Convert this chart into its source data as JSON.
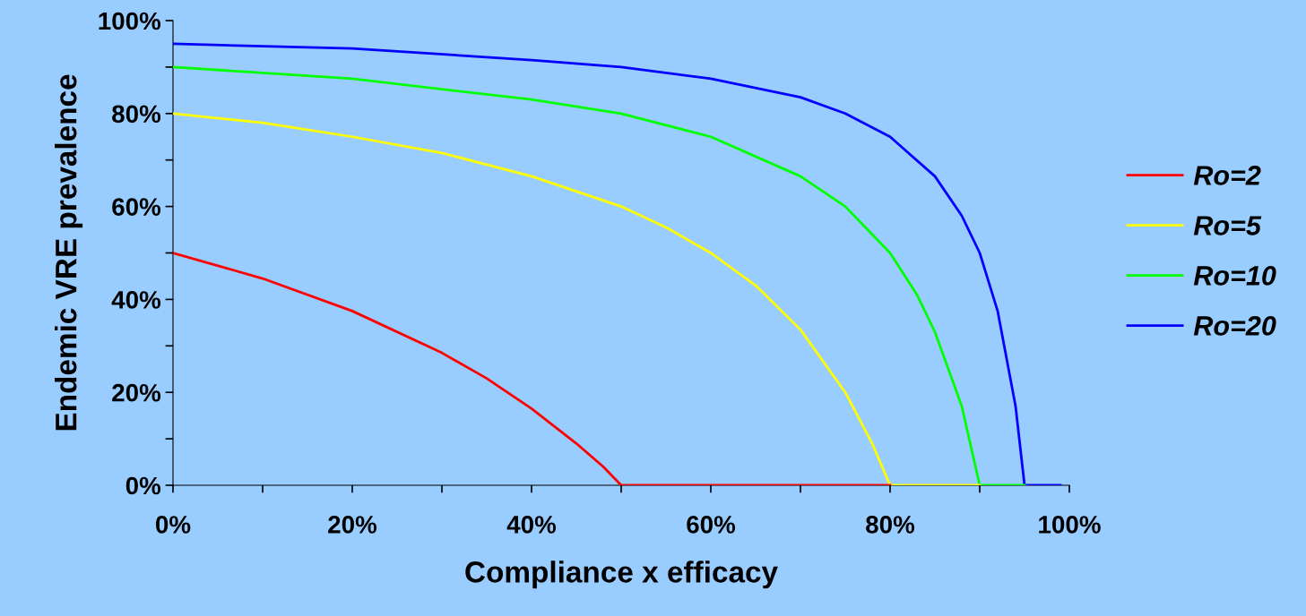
{
  "chart_data": {
    "type": "line",
    "xlabel": "Compliance x efficacy",
    "ylabel": "Endemic VRE prevalence",
    "xlim": [
      0,
      100
    ],
    "ylim": [
      0,
      100
    ],
    "xticks": [
      {
        "value": 0,
        "label": "0%"
      },
      {
        "value": 10,
        "label": null
      },
      {
        "value": 20,
        "label": "20%"
      },
      {
        "value": 30,
        "label": null
      },
      {
        "value": 40,
        "label": "40%"
      },
      {
        "value": 50,
        "label": null
      },
      {
        "value": 60,
        "label": "60%"
      },
      {
        "value": 70,
        "label": null
      },
      {
        "value": 80,
        "label": "80%"
      },
      {
        "value": 90,
        "label": null
      },
      {
        "value": 100,
        "label": "100%"
      }
    ],
    "yticks": [
      {
        "value": 0,
        "label": "0%"
      },
      {
        "value": 10,
        "label": null
      },
      {
        "value": 20,
        "label": "20%"
      },
      {
        "value": 30,
        "label": null
      },
      {
        "value": 40,
        "label": "40%"
      },
      {
        "value": 50,
        "label": null
      },
      {
        "value": 60,
        "label": "60%"
      },
      {
        "value": 70,
        "label": null
      },
      {
        "value": 80,
        "label": "80%"
      },
      {
        "value": 90,
        "label": null
      },
      {
        "value": 100,
        "label": "100%"
      }
    ],
    "grid": false,
    "legend": "right",
    "marker": "none",
    "line_style": "solid",
    "series": [
      {
        "name": "Ro=2",
        "color": "#ff0000",
        "x": [
          0,
          10,
          20,
          30,
          35,
          40,
          45,
          48,
          50,
          80
        ],
        "values": [
          50,
          44.5,
          37.5,
          28.5,
          23,
          16.5,
          9,
          4,
          0,
          0
        ]
      },
      {
        "name": "Ro=5",
        "color": "#ffff00",
        "x": [
          0,
          10,
          20,
          30,
          40,
          50,
          55,
          60,
          65,
          70,
          75,
          78,
          80,
          90
        ],
        "values": [
          80,
          78,
          75,
          71.5,
          66.5,
          60,
          55.5,
          50,
          43,
          33.5,
          20,
          9,
          0,
          0
        ]
      },
      {
        "name": "Ro=10",
        "color": "#00ff00",
        "x": [
          0,
          20,
          40,
          50,
          60,
          70,
          75,
          80,
          83,
          85,
          88,
          90,
          95
        ],
        "values": [
          90,
          87.5,
          83,
          80,
          75,
          66.5,
          60,
          50,
          41,
          33,
          17,
          0,
          0
        ]
      },
      {
        "name": "Ro=20",
        "color": "#0000ff",
        "x": [
          0,
          20,
          40,
          50,
          60,
          70,
          75,
          80,
          85,
          88,
          90,
          92,
          94,
          95,
          99
        ],
        "values": [
          95,
          94,
          91.5,
          90,
          87.5,
          83.5,
          80,
          75,
          66.5,
          58,
          50,
          37.5,
          17,
          0,
          0
        ]
      }
    ]
  }
}
